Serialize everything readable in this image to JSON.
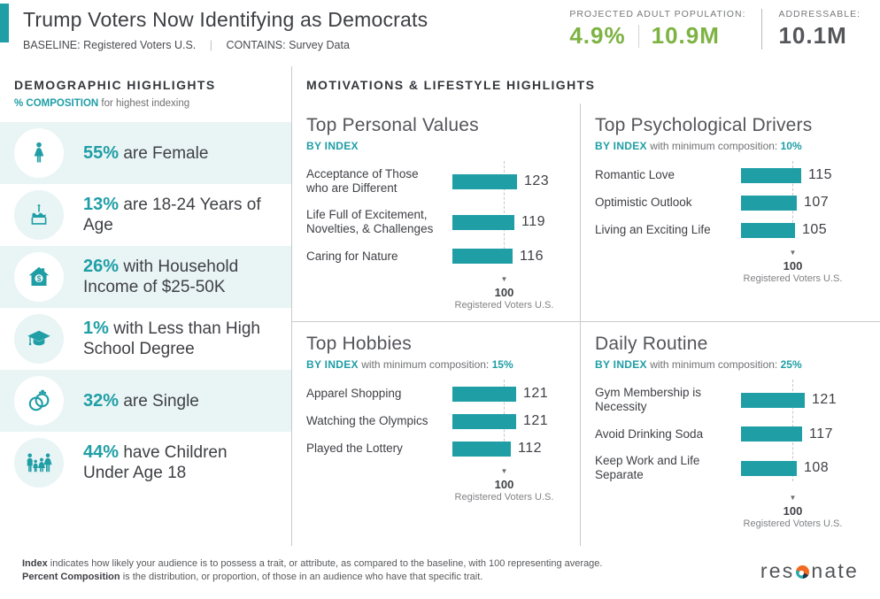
{
  "colors": {
    "teal": "#1f9ea6",
    "green": "#7db342",
    "light_teal_bg": "#e9f4f5"
  },
  "header": {
    "title": "Trump Voters Now Identifying as Democrats",
    "baseline_label": "BASELINE:",
    "baseline_value": "Registered Voters U.S.",
    "contains_label": "CONTAINS:",
    "contains_value": "Survey Data",
    "stats": {
      "projected_label": "PROJECTED ADULT POPULATION:",
      "projected_pct": "4.9%",
      "projected_count": "10.9M",
      "addressable_label": "ADDRESSABLE:",
      "addressable_value": "10.1M"
    }
  },
  "sidebar": {
    "title": "DEMOGRAPHIC HIGHLIGHTS",
    "subtitle_accent": "% COMPOSITION",
    "subtitle_rest": "for highest indexing",
    "items": [
      {
        "icon": "female-icon",
        "value": "55%",
        "text": "are Female"
      },
      {
        "icon": "birthday-cake-icon",
        "value": "13%",
        "text": "are 18-24 Years of Age"
      },
      {
        "icon": "house-income-icon",
        "value": "26%",
        "text": "with Household Income of $25-50K"
      },
      {
        "icon": "graduation-cap-icon",
        "value": "1%",
        "text": "with Less than High School Degree"
      },
      {
        "icon": "wedding-rings-icon",
        "value": "32%",
        "text": "are Single"
      },
      {
        "icon": "family-icon",
        "value": "44%",
        "text": "have Children Under Age 18"
      }
    ]
  },
  "main": {
    "section_title": "MOTIVATIONS & LIFESTYLE HIGHLIGHTS"
  },
  "chart_data": [
    {
      "type": "bar",
      "orientation": "horizontal",
      "title": "Top Personal Values",
      "subtitle_accent": "BY INDEX",
      "subtitle_rest": "",
      "min_composition": "",
      "categories": [
        "Acceptance of Those who are Different",
        "Life Full of Excitement, Novelties, & Challenges",
        "Caring for Nature"
      ],
      "values": [
        123,
        119,
        116
      ],
      "baseline": "100",
      "baseline_label": "Registered Voters U.S."
    },
    {
      "type": "bar",
      "orientation": "horizontal",
      "title": "Top Psychological Drivers",
      "subtitle_accent": "BY INDEX",
      "subtitle_rest": "with minimum composition:",
      "min_composition": "10%",
      "categories": [
        "Romantic Love",
        "Optimistic Outlook",
        "Living an Exciting Life"
      ],
      "values": [
        115,
        107,
        105
      ],
      "baseline": "100",
      "baseline_label": "Registered Voters U.S."
    },
    {
      "type": "bar",
      "orientation": "horizontal",
      "title": "Top Hobbies",
      "subtitle_accent": "BY INDEX",
      "subtitle_rest": "with minimum composition:",
      "min_composition": "15%",
      "categories": [
        "Apparel Shopping",
        "Watching the Olympics",
        "Played the Lottery"
      ],
      "values": [
        121,
        121,
        112
      ],
      "baseline": "100",
      "baseline_label": "Registered Voters U.S."
    },
    {
      "type": "bar",
      "orientation": "horizontal",
      "title": "Daily Routine",
      "subtitle_accent": "BY INDEX",
      "subtitle_rest": "with minimum composition:",
      "min_composition": "25%",
      "categories": [
        "Gym Membership is Necessity",
        "Avoid Drinking Soda",
        "Keep Work and Life Separate"
      ],
      "values": [
        121,
        117,
        108
      ],
      "baseline": "100",
      "baseline_label": "Registered Voters U.S."
    }
  ],
  "footer": {
    "definitions": [
      {
        "term": "Index",
        "text": "indicates how likely your audience is to possess a trait, or attribute, as compared to the baseline, with 100 representing average."
      },
      {
        "term": "Percent Composition",
        "text": "is the distribution, or proportion, of those in an audience who have that specific trait."
      }
    ],
    "logo_pre": "res",
    "logo_post": "nate",
    "logo_name": "resonate"
  }
}
